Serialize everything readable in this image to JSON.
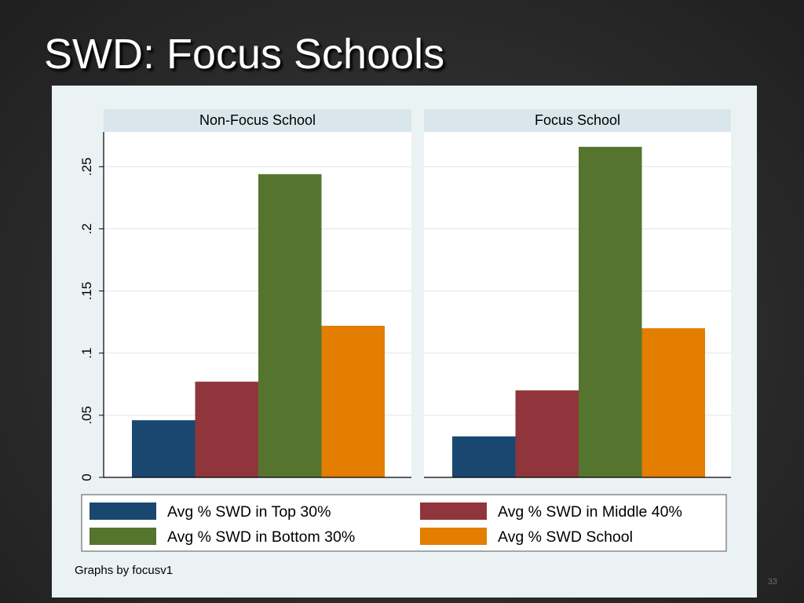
{
  "slide": {
    "title": "SWD:  Focus Schools",
    "number": "33"
  },
  "chart_data": {
    "type": "bar",
    "panels": [
      "Non-Focus School",
      "Focus School"
    ],
    "series": [
      {
        "name": "Avg % SWD in Top 30%",
        "color": "#1a476f",
        "values": [
          0.046,
          0.033
        ]
      },
      {
        "name": "Avg % SWD in Middle 40%",
        "color": "#90353b",
        "values": [
          0.077,
          0.07
        ]
      },
      {
        "name": "Avg % SWD in Bottom 30%",
        "color": "#55752f",
        "values": [
          0.244,
          0.266
        ]
      },
      {
        "name": "Avg % SWD School",
        "color": "#e37e00",
        "values": [
          0.122,
          0.12
        ]
      }
    ],
    "yticks": [
      "0",
      ".05",
      ".1",
      ".15",
      ".2",
      ".25"
    ],
    "ytick_values": [
      0,
      0.05,
      0.1,
      0.15,
      0.2,
      0.25
    ],
    "ylim": [
      0,
      0.278
    ],
    "grid": true,
    "legend_position": "bottom",
    "note": "Graphs by focusv1"
  }
}
